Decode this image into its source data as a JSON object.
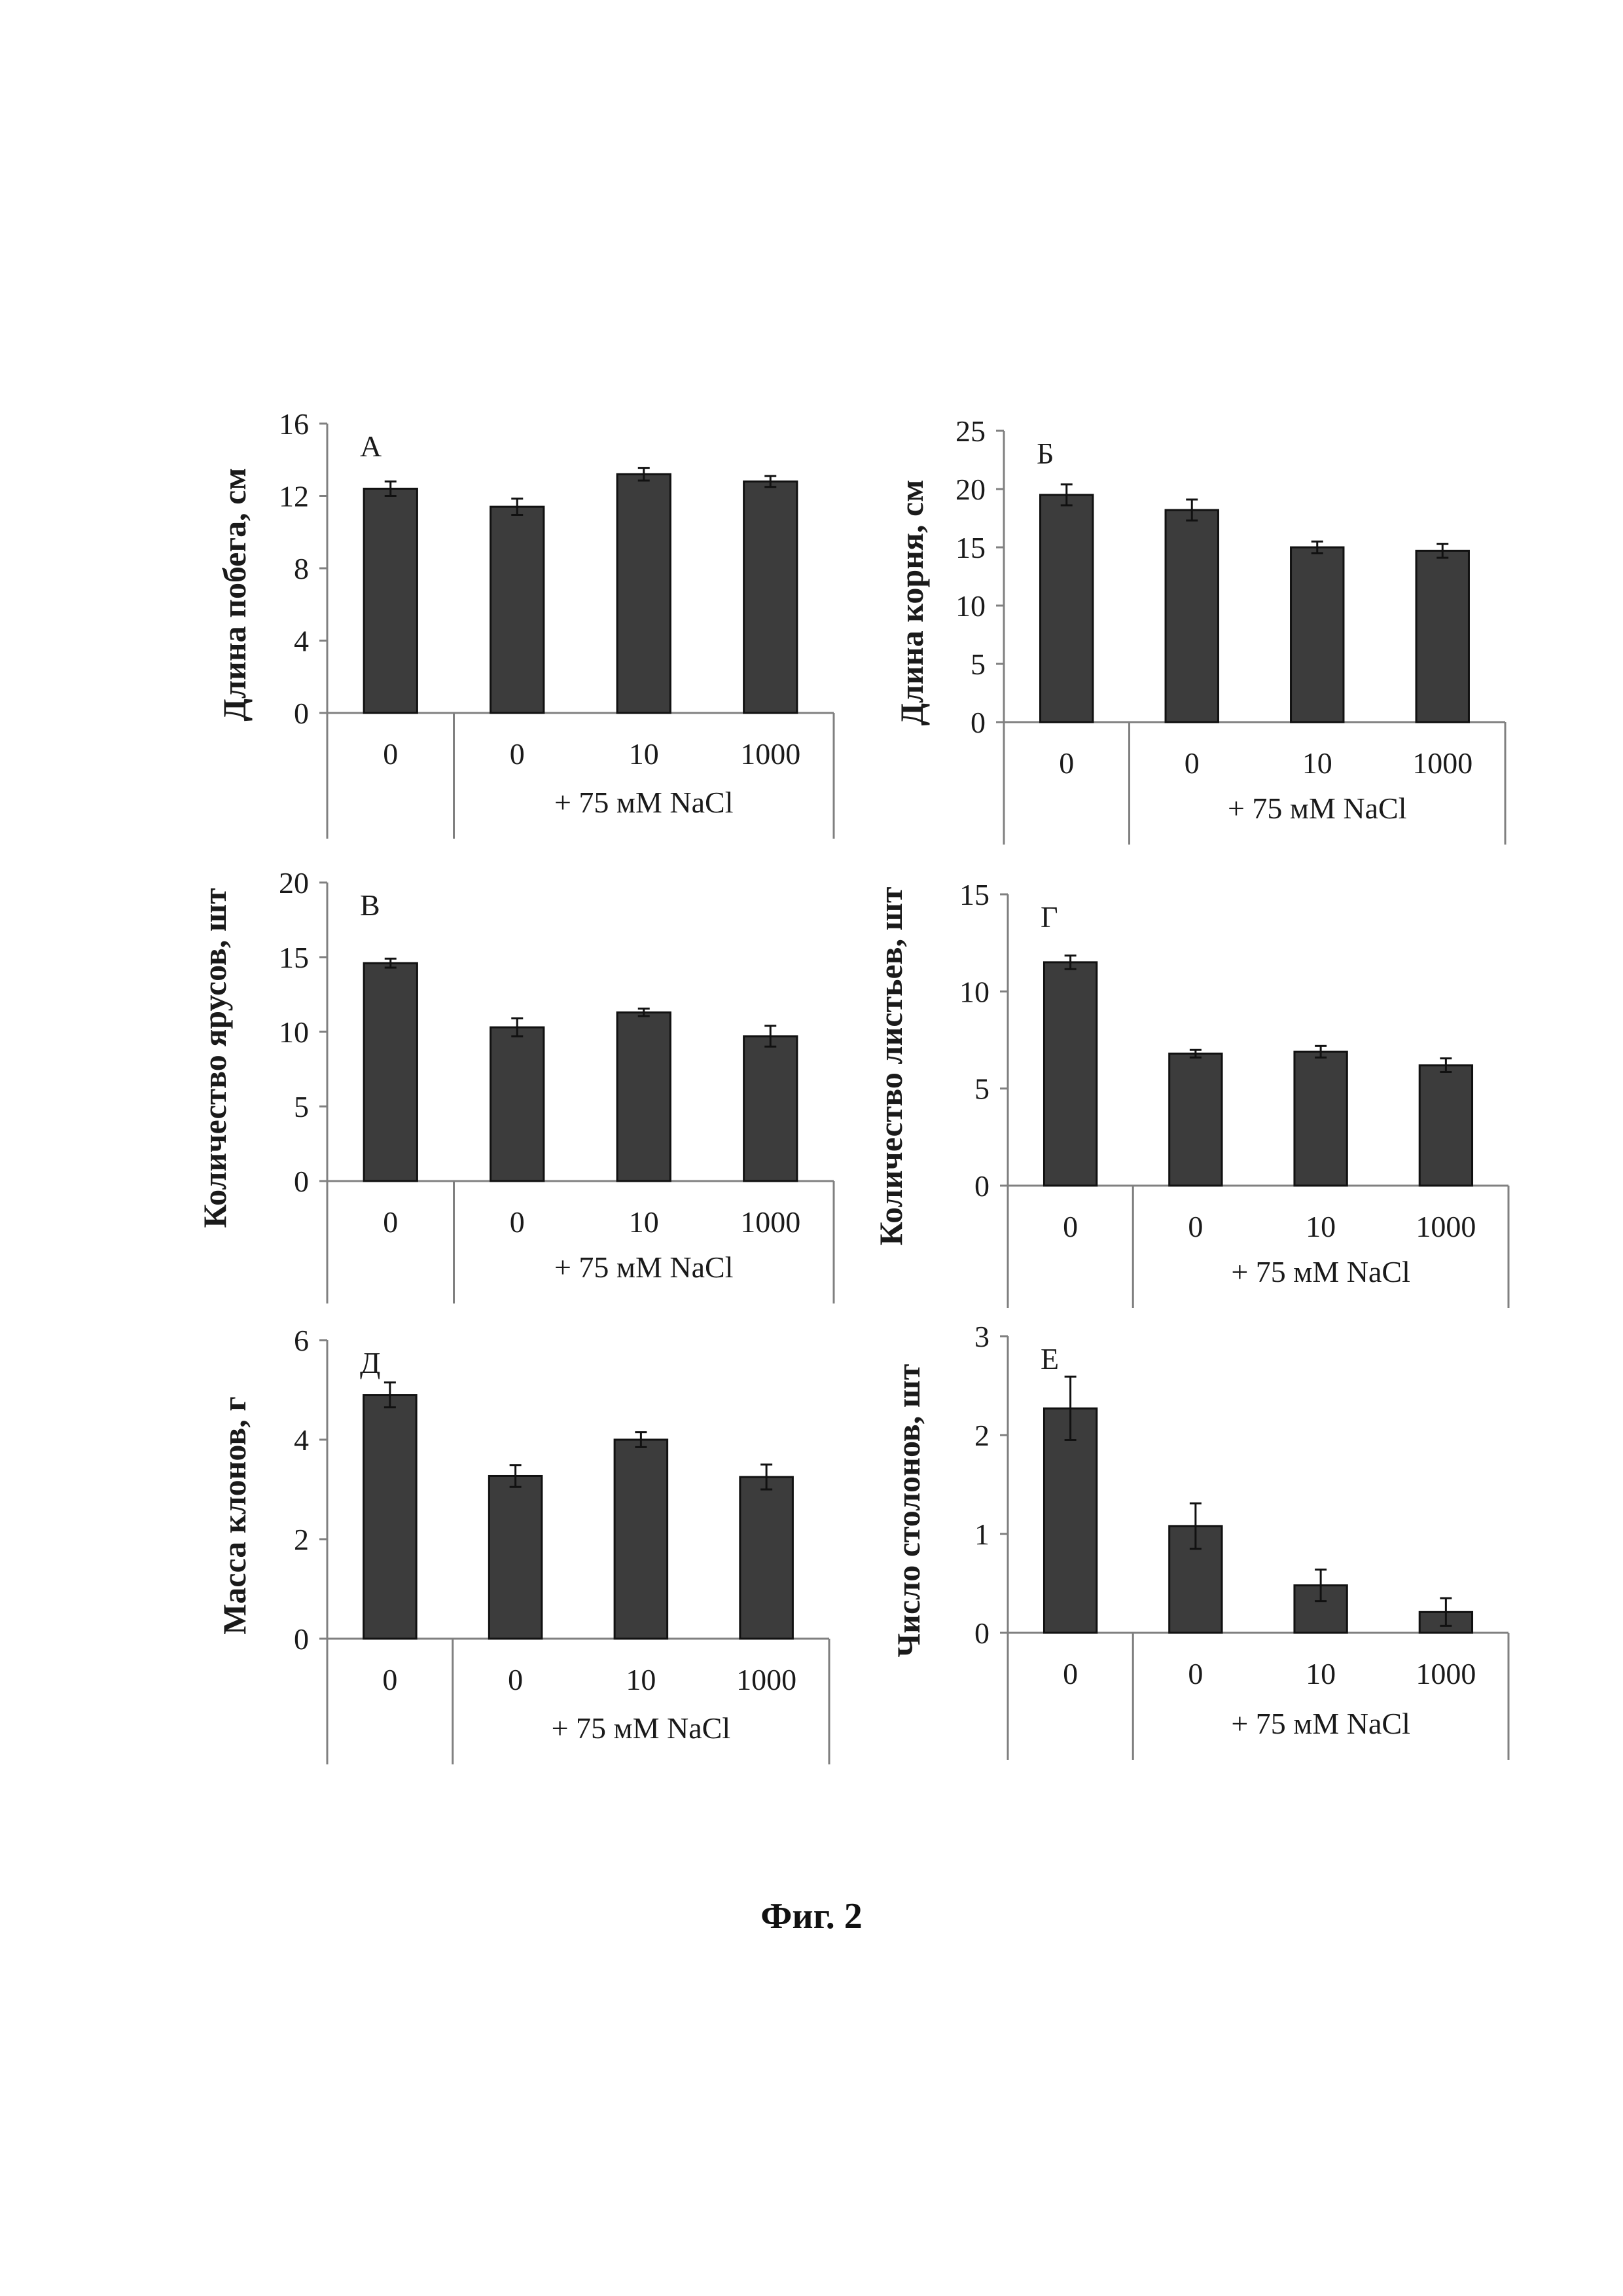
{
  "caption": "Фиг. 2",
  "chart_data": [
    {
      "type": "bar",
      "panel_letter": "А",
      "ylabel": "Длина побега, см",
      "ylim": [
        0,
        16
      ],
      "yticks": [
        "0",
        "4",
        "8",
        "12",
        "16"
      ],
      "categories": [
        "0",
        "0",
        "10",
        "1000"
      ],
      "group_label": "+ 75 мМ NaCl",
      "values": [
        12.4,
        11.4,
        13.2,
        12.8
      ],
      "errors": [
        0.4,
        0.45,
        0.35,
        0.3
      ]
    },
    {
      "type": "bar",
      "panel_letter": "Б",
      "ylabel": "Длина корня, см",
      "ylim": [
        0,
        25
      ],
      "yticks": [
        "0",
        "5",
        "10",
        "15",
        "20",
        "25"
      ],
      "categories": [
        "0",
        "0",
        "10",
        "1000"
      ],
      "group_label": "+ 75 мМ NaCl",
      "values": [
        19.5,
        18.2,
        15.0,
        14.7
      ],
      "errors": [
        0.9,
        0.9,
        0.5,
        0.6
      ]
    },
    {
      "type": "bar",
      "panel_letter": "В",
      "ylabel": "Количество ярусов, шт",
      "ylim": [
        0,
        20
      ],
      "yticks": [
        "0",
        "5",
        "10",
        "15",
        "20"
      ],
      "categories": [
        "0",
        "0",
        "10",
        "1000"
      ],
      "group_label": "+ 75 мМ NaCl",
      "values": [
        14.6,
        10.3,
        11.3,
        9.7
      ],
      "errors": [
        0.3,
        0.6,
        0.25,
        0.7
      ]
    },
    {
      "type": "bar",
      "panel_letter": "Г",
      "ylabel": "Количество листьев, шт",
      "ylim": [
        0,
        15
      ],
      "yticks": [
        "0",
        "5",
        "10",
        "15"
      ],
      "categories": [
        "0",
        "0",
        "10",
        "1000"
      ],
      "group_label": "+ 75 мМ NaCl",
      "values": [
        11.5,
        6.8,
        6.9,
        6.2
      ],
      "errors": [
        0.35,
        0.2,
        0.3,
        0.35
      ]
    },
    {
      "type": "bar",
      "panel_letter": "Д",
      "ylabel": "Масса клонов, г",
      "ylim": [
        0,
        6
      ],
      "yticks": [
        "0",
        "2",
        "4",
        "6"
      ],
      "categories": [
        "0",
        "0",
        "10",
        "1000"
      ],
      "group_label": "+ 75 мМ NaCl",
      "values": [
        4.9,
        3.27,
        4.0,
        3.25
      ],
      "errors": [
        0.25,
        0.22,
        0.15,
        0.25
      ]
    },
    {
      "type": "bar",
      "panel_letter": "Е",
      "ylabel": "Число столонов, шт",
      "ylim": [
        0,
        3
      ],
      "yticks": [
        "0",
        "1",
        "2",
        "3"
      ],
      "categories": [
        "0",
        "0",
        "10",
        "1000"
      ],
      "group_label": "+ 75 мМ NaCl",
      "values": [
        2.27,
        1.08,
        0.48,
        0.21
      ],
      "errors": [
        0.32,
        0.23,
        0.16,
        0.14
      ]
    }
  ],
  "colors": {
    "bar": "#3c3c3c",
    "axis": "#808080",
    "errorbar": "#111111"
  }
}
